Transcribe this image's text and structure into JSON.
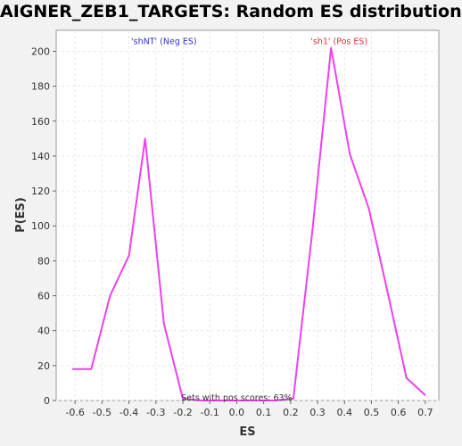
{
  "chart_data": {
    "type": "line",
    "title": "AIGNER_ZEB1_TARGETS: Random ES distribution",
    "xlabel": "ES",
    "ylabel": "P(ES)",
    "xlim": [
      -0.67,
      0.75
    ],
    "ylim": [
      0,
      212
    ],
    "x_ticks": [
      -0.6,
      -0.5,
      -0.4,
      -0.3,
      -0.2,
      -0.1,
      0.0,
      0.1,
      0.2,
      0.3,
      0.4,
      0.5,
      0.6,
      0.7
    ],
    "x_tick_labels": [
      "-0.6",
      "-0.5",
      "-0.4",
      "-0.3",
      "-0.2",
      "-0.1",
      "0.0",
      "0.1",
      "0.2",
      "0.3",
      "0.4",
      "0.5",
      "0.6",
      "0.7"
    ],
    "y_ticks": [
      0,
      20,
      40,
      60,
      80,
      100,
      120,
      140,
      160,
      180,
      200
    ],
    "y_tick_labels": [
      "0",
      "20",
      "40",
      "60",
      "80",
      "100",
      "120",
      "140",
      "160",
      "180",
      "200"
    ],
    "grid": true,
    "series": [
      {
        "color": "#ee40ee",
        "x": [
          -0.61,
          -0.54,
          -0.47,
          -0.4,
          -0.34,
          -0.27,
          -0.2,
          -0.13,
          -0.07,
          0.0,
          0.07,
          0.14,
          0.21,
          0.28,
          0.35,
          0.42,
          0.49,
          0.56,
          0.63,
          0.7
        ],
        "y": [
          18,
          18,
          60,
          83,
          150,
          44,
          1,
          0,
          0,
          0,
          0,
          0,
          1,
          96,
          202,
          141,
          110,
          62,
          13,
          3
        ]
      }
    ],
    "annotations": [
      {
        "text": "'shNT' (Neg ES)",
        "x": -0.27,
        "y": 206,
        "color": "#3333cc"
      },
      {
        "text": "'sh1' (Pos ES)",
        "x": 0.38,
        "y": 206,
        "color": "#dd3333"
      },
      {
        "text": "Sets with pos scores: 63%",
        "x": 0.0,
        "y": 2,
        "color": "#333333"
      }
    ]
  }
}
